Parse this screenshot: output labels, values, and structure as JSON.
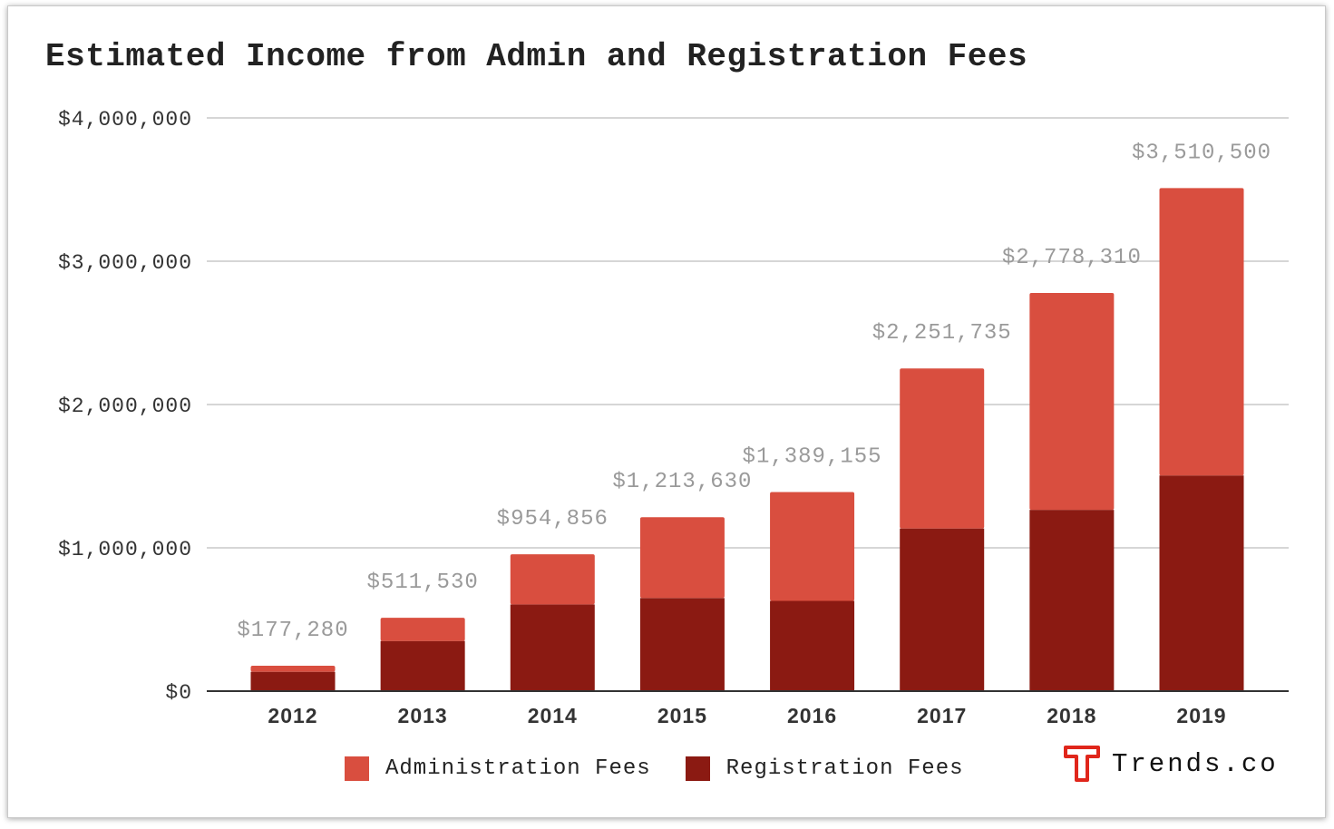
{
  "colors": {
    "administration": "#d94e3f",
    "registration": "#8b1a12",
    "grid": "#d6d6d6",
    "axis": "#333333",
    "total_label": "#9a9a9a"
  },
  "brand": {
    "name": "Trends.co",
    "logo_icon": "trends-t-logo-icon"
  },
  "legend": {
    "items": [
      {
        "label": "Administration Fees",
        "color": "#d94e3f"
      },
      {
        "label": "Registration Fees",
        "color": "#8b1a12"
      }
    ]
  },
  "chart_data": {
    "type": "bar",
    "stacked": true,
    "title": "Estimated Income from Admin and Registration Fees",
    "xlabel": "",
    "ylabel": "",
    "ylim": [
      0,
      4000000
    ],
    "yticks": [
      "$0",
      "$1,000,000",
      "$2,000,000",
      "$3,000,000",
      "$4,000,000"
    ],
    "ytick_values": [
      0,
      1000000,
      2000000,
      3000000,
      4000000
    ],
    "categories": [
      "2012",
      "2013",
      "2014",
      "2015",
      "2016",
      "2017",
      "2018",
      "2019"
    ],
    "series": [
      {
        "name": "Registration Fees",
        "values": [
          135000,
          350000,
          605000,
          650000,
          630000,
          1135000,
          1265000,
          1505000
        ]
      },
      {
        "name": "Administration Fees",
        "values": [
          42280,
          161530,
          349856,
          563630,
          759155,
          1116735,
          1513310,
          2005500
        ]
      }
    ],
    "totals": [
      177280,
      511530,
      954856,
      1213630,
      1389155,
      2251735,
      2778310,
      3510500
    ],
    "total_labels": [
      "$177,280",
      "$511,530",
      "$954,856",
      "$1,213,630",
      "$1,389,155",
      "$2,251,735",
      "$2,778,310",
      "$3,510,500"
    ],
    "grid": true,
    "legend_position": "bottom"
  }
}
